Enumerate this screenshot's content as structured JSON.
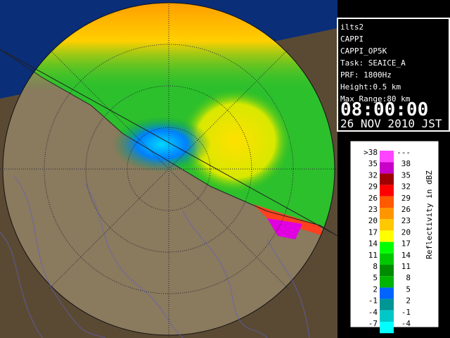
{
  "header": {
    "site": "ilts2",
    "product": "CAPPI",
    "product_name": "CAPPI_OP5K",
    "task": "Task: SEAICE_A",
    "prf": "PRF: 1800Hz",
    "height": "Height:0.5 km",
    "max_range": "Max Range:80 km",
    "time": "08:00:00",
    "date": "26 NOV 2010 JST"
  },
  "legend": {
    "title": "Reflectivity in dBZ",
    "rows": [
      {
        "low": ">38",
        "high": "---",
        "color": "#ff44ff"
      },
      {
        "low": "35",
        "high": "38",
        "color": "#c800c8"
      },
      {
        "low": "32",
        "high": "35",
        "color": "#a00000"
      },
      {
        "low": "29",
        "high": "32",
        "color": "#ff0000"
      },
      {
        "low": "26",
        "high": "29",
        "color": "#ff5a00"
      },
      {
        "low": "23",
        "high": "26",
        "color": "#ff9600"
      },
      {
        "low": "20",
        "high": "23",
        "color": "#ffc800"
      },
      {
        "low": "17",
        "high": "20",
        "color": "#ffff00"
      },
      {
        "low": "14",
        "high": "17",
        "color": "#00ff00"
      },
      {
        "low": "11",
        "high": "14",
        "color": "#00c800"
      },
      {
        "low": "8",
        "high": "11",
        "color": "#008c00"
      },
      {
        "low": "5",
        "high": "8",
        "color": "#00b400"
      },
      {
        "low": "2",
        "high": "5",
        "color": "#0064ff"
      },
      {
        "low": "-1",
        "high": "2",
        "color": "#009696"
      },
      {
        "low": "-4",
        "high": "-1",
        "color": "#00c8c8"
      },
      {
        "low": "-7",
        "high": "-4",
        "color": "#00ffff"
      }
    ]
  }
}
